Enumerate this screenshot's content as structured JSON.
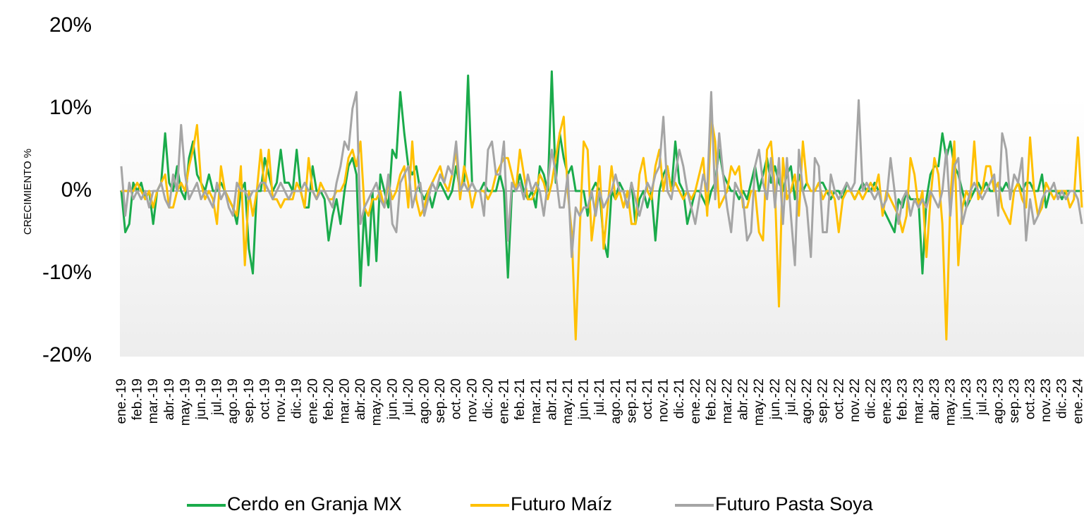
{
  "chart_data": {
    "type": "line",
    "y_label": "CRECIMIENTO %",
    "ylim": [
      -20,
      20
    ],
    "yticks": [
      {
        "value": -20,
        "label": "-20%"
      },
      {
        "value": -10,
        "label": "-10%"
      },
      {
        "value": 0,
        "label": "0%"
      },
      {
        "value": 10,
        "label": "10%"
      },
      {
        "value": 20,
        "label": "20%"
      }
    ],
    "grid": false,
    "legend": "bottom",
    "categories": [
      "ene.-19",
      null,
      null,
      null,
      "feb.-19",
      null,
      null,
      null,
      "mar.-19",
      null,
      null,
      null,
      "abr.-19",
      null,
      null,
      null,
      "may.-19",
      null,
      null,
      null,
      "jun.-19",
      null,
      null,
      null,
      "jul.-19",
      null,
      null,
      null,
      "ago.-19",
      null,
      null,
      null,
      "sep.-19",
      null,
      null,
      null,
      "oct.-19",
      null,
      null,
      null,
      "nov.-19",
      null,
      null,
      null,
      "dic.-19",
      null,
      null,
      null,
      "ene.-20",
      null,
      null,
      null,
      "feb.-20",
      null,
      null,
      null,
      "mar.-20",
      null,
      null,
      null,
      "abr.-20",
      null,
      null,
      null,
      "may.-20",
      null,
      null,
      null,
      "jun.-20",
      null,
      null,
      null,
      "jul.-20",
      null,
      null,
      null,
      "ago.-20",
      null,
      null,
      null,
      "sep.-20",
      null,
      null,
      null,
      "oct.-20",
      null,
      null,
      null,
      "nov.-20",
      null,
      null,
      null,
      "dic.-20",
      null,
      null,
      null,
      "ene.-21",
      null,
      null,
      null,
      "feb.-21",
      null,
      null,
      null,
      "mar.-21",
      null,
      null,
      null,
      "abr.-21",
      null,
      null,
      null,
      "may.-21",
      null,
      null,
      null,
      "jun.-21",
      null,
      null,
      null,
      "jul.-21",
      null,
      null,
      null,
      "ago.-21",
      null,
      null,
      null,
      "sep.-21",
      null,
      null,
      null,
      "oct.-21",
      null,
      null,
      null,
      "nov.-21",
      null,
      null,
      null,
      "dic.-21",
      null,
      null,
      null,
      "ene.-22",
      null,
      null,
      null,
      "feb.-22",
      null,
      null,
      null,
      "mar.-22",
      null,
      null,
      null,
      "abr.-22",
      null,
      null,
      null,
      "may.-22",
      null,
      null,
      null,
      "jun.-22",
      null,
      null,
      null,
      "jul.-22",
      null,
      null,
      null,
      "ago.-22",
      null,
      null,
      null,
      "sep.-22",
      null,
      null,
      null,
      "oct.-22",
      null,
      null,
      null,
      "nov.-22",
      null,
      null,
      null,
      "dic.-22",
      null,
      null,
      null,
      "ene.-23",
      null,
      null,
      null,
      "feb.-23",
      null,
      null,
      null,
      "mar.-23",
      null,
      null,
      null,
      "abr.-23",
      null,
      null,
      null,
      "may.-23",
      null,
      null,
      null,
      "jun.-23",
      null,
      null,
      null,
      "jul.-23",
      null,
      null,
      null,
      "ago.-23",
      null,
      null,
      null,
      "sep.-23",
      null,
      null,
      null,
      "oct.-23",
      null,
      null,
      null,
      "nov.-23",
      null,
      null,
      null,
      "dic.-23",
      null,
      null,
      null,
      "ene.-24",
      null
    ],
    "series": [
      {
        "name": "Cerdo en Granja MX",
        "color": "#1aab4b",
        "values": [
          0,
          -5,
          -4,
          1,
          0,
          1,
          -1,
          0,
          -4,
          0,
          1,
          7,
          1,
          0,
          3,
          0,
          -1,
          4,
          6,
          2,
          1,
          0,
          2,
          0,
          0,
          1,
          0,
          -1,
          -2,
          -4,
          0,
          1,
          -7,
          -10,
          0,
          0,
          4,
          2,
          0,
          1,
          5,
          1,
          1,
          0,
          5,
          0,
          -2,
          -2,
          3,
          0,
          0,
          -1,
          -6,
          -3,
          -1,
          -4,
          0,
          3,
          4,
          2,
          -11.5,
          -2,
          -9,
          0,
          -8.5,
          2,
          0,
          -2,
          5,
          4,
          12,
          7,
          3,
          2,
          3,
          0,
          -1,
          0,
          -2,
          0,
          1,
          0,
          -1,
          0,
          3,
          0,
          1,
          14,
          1,
          0,
          0,
          1,
          0,
          0,
          0,
          2,
          0,
          -10.5,
          0,
          0,
          2,
          0,
          -1,
          0,
          -2,
          3,
          2,
          0,
          14.5,
          1,
          7,
          4,
          2,
          3,
          0,
          0,
          0,
          -3,
          0,
          1,
          0,
          -6,
          -8,
          0,
          -1,
          1,
          0,
          -2,
          1,
          -4,
          -1,
          0,
          -2,
          0,
          -6,
          0,
          2,
          3,
          0,
          6,
          1,
          0,
          -4,
          -2,
          0,
          0,
          -1,
          -2,
          0,
          1,
          5,
          2,
          1,
          0,
          0,
          -1,
          0,
          -1,
          1,
          3,
          0,
          2,
          4,
          1,
          3,
          1,
          0,
          2,
          3,
          -1,
          2,
          0,
          1,
          0,
          0,
          1,
          1,
          0,
          -1,
          0,
          0,
          -1,
          1,
          0,
          -1,
          0,
          1,
          0,
          0,
          1,
          0,
          -2,
          -3,
          -4,
          -5,
          -1,
          -2,
          0,
          -1,
          -1,
          -1,
          -10,
          -1,
          2,
          3,
          3,
          7,
          4,
          6,
          3,
          2,
          0,
          -2,
          -1,
          0,
          1,
          0,
          1,
          0,
          0,
          1,
          0,
          1,
          0,
          0,
          1,
          0,
          1,
          1,
          0,
          0,
          2,
          -2,
          0,
          0,
          0,
          -1,
          0,
          0,
          0,
          0,
          0
        ]
      },
      {
        "name": "Futuro Maíz",
        "color": "#ffc000",
        "values": [
          0,
          0,
          0,
          0,
          1,
          0,
          -1,
          0,
          -2,
          0,
          1,
          2,
          -2,
          -2,
          0,
          1,
          0,
          3,
          5,
          8,
          1,
          -1,
          0,
          -1,
          -4,
          3,
          0,
          -1,
          -2,
          -3,
          3,
          -9,
          0,
          -3,
          0,
          5,
          0,
          5,
          -1,
          -1,
          -2,
          -1,
          -1,
          -1,
          1,
          0,
          -2,
          4,
          0,
          -1,
          1,
          0,
          -1,
          -1,
          0,
          0,
          1,
          4,
          5,
          3,
          6,
          -2,
          -3,
          -1,
          -1,
          0,
          -2,
          1,
          -1,
          0,
          2,
          3,
          -2,
          6,
          -1,
          -3,
          -2,
          0,
          1,
          2,
          3,
          1,
          0,
          2,
          5,
          -1,
          3,
          1,
          -2,
          0,
          0,
          0,
          -1,
          0,
          2,
          3,
          4,
          4,
          2,
          0,
          5,
          2,
          -1,
          -1,
          0,
          2,
          1,
          -1,
          1,
          4,
          7,
          9,
          0,
          -5,
          -18,
          -5,
          6,
          5,
          -6,
          -2,
          3,
          -7,
          -2,
          3,
          -1,
          0,
          -2,
          0,
          -4,
          -4,
          2,
          4,
          0,
          -1,
          3,
          5,
          0,
          3,
          0,
          1,
          0,
          -1,
          0,
          -1,
          0,
          2,
          4,
          -3,
          9,
          6,
          -2,
          -1,
          0,
          3,
          2,
          3,
          -2,
          -2,
          0,
          0,
          -5,
          -6,
          5,
          6,
          0,
          -14,
          4,
          -1,
          0,
          2,
          -3,
          6,
          1,
          0,
          0,
          1,
          -1,
          0,
          0,
          -1,
          -5,
          -1,
          0,
          0,
          -1,
          0,
          -1,
          0,
          1,
          0,
          2,
          -3,
          0,
          -1,
          -2,
          -3,
          -5,
          -3,
          4,
          2,
          -2,
          0,
          -8,
          -1,
          4,
          2,
          -4,
          -18,
          -1,
          6,
          -9,
          -2,
          0,
          -1,
          6,
          -1,
          0,
          3,
          3,
          0,
          1,
          -2,
          -3,
          -4,
          0,
          1,
          -1,
          -2,
          6.5,
          0,
          -3,
          -2,
          1,
          0,
          -1,
          0,
          0,
          0,
          -2,
          -1,
          6.5,
          -2
        ]
      },
      {
        "name": "Futuro Pasta Soya",
        "color": "#a5a5a5",
        "values": [
          3,
          -3,
          1,
          -1,
          0,
          -1,
          0,
          -2,
          0,
          0,
          1,
          -1,
          -2,
          2,
          0,
          8,
          2,
          -1,
          0,
          1,
          -1,
          0,
          -1,
          -2,
          1,
          -1,
          0,
          -2,
          -3,
          1,
          0,
          0,
          -1,
          0,
          0,
          1,
          1,
          0,
          -1,
          0,
          1,
          0,
          -1,
          0,
          0,
          0,
          1,
          0,
          0,
          -1,
          0,
          0,
          -1,
          -2,
          1,
          3,
          6,
          5,
          10,
          12,
          -4,
          -2,
          -1,
          0,
          1,
          -1,
          -2,
          2,
          -4,
          -5,
          1,
          2,
          3,
          -2,
          0,
          1,
          -3,
          -1,
          1,
          0,
          2,
          1,
          3,
          2,
          6,
          0,
          1,
          0,
          1,
          0,
          0,
          -3,
          5,
          6,
          2,
          2,
          6,
          -6,
          1,
          0,
          1,
          -1,
          2,
          0,
          1,
          0,
          -3,
          1,
          5,
          2,
          -2,
          -2,
          2,
          -8,
          -2,
          -3,
          -2,
          -2,
          0,
          -3,
          0,
          -2,
          -1,
          0,
          2,
          0,
          0,
          -2,
          1,
          -1,
          -3,
          -1,
          1,
          0,
          2,
          3,
          9,
          0,
          -1,
          2,
          5,
          3,
          0,
          -2,
          -4,
          -1,
          2,
          0,
          12,
          -1,
          7,
          2,
          -2,
          -5,
          1,
          0,
          -1,
          -6,
          -5,
          3,
          5,
          1,
          -1,
          4,
          -2,
          4,
          -4,
          4,
          -3,
          -9,
          5,
          0,
          -2,
          -8,
          4,
          3,
          -5,
          -5,
          2,
          0,
          -1,
          0,
          1,
          0,
          1,
          11,
          0,
          1,
          0,
          -1,
          0,
          -2,
          -1,
          4,
          0,
          -4,
          -1,
          0,
          -3,
          -1,
          -2,
          -1,
          -2,
          0,
          -1,
          -2,
          0,
          5,
          -3,
          3,
          4,
          -4,
          -2,
          0,
          1,
          0,
          -1,
          0,
          1,
          2,
          -3,
          7,
          5,
          -1,
          2,
          1,
          4,
          -6,
          -1,
          -4,
          -3,
          -1,
          0,
          0,
          1,
          -1,
          0,
          -1,
          0,
          0,
          -1,
          -4
        ]
      }
    ]
  }
}
